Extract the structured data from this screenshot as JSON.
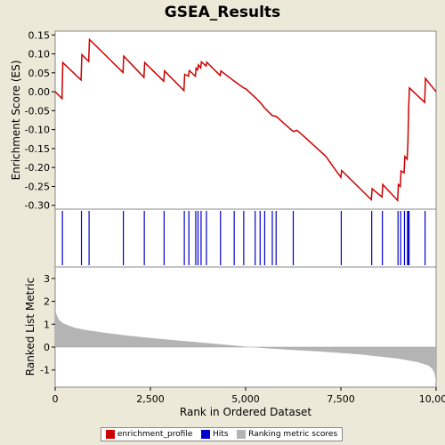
{
  "title": "GSEA_Results",
  "legend": {
    "profile_label": "enrichment_profile",
    "hits_label": "Hits",
    "metric_label": "Ranking metric scores"
  },
  "colors": {
    "profile": "#cc0000",
    "hits": "#0000cc",
    "metric": "#b4b4b4",
    "background": "#ece9d8"
  },
  "chart_data": [
    {
      "type": "line",
      "name": "enrichment_profile",
      "ylabel": "Enrichment Score (ES)",
      "ylim": [
        -0.31,
        0.16
      ],
      "yticks": [
        0.15,
        0.1,
        0.05,
        0.0,
        -0.05,
        -0.1,
        -0.15,
        -0.2,
        -0.25,
        -0.3
      ],
      "ytick_labels": [
        "0.15",
        "0.10",
        "0.05",
        "0.00",
        "-0.05",
        "-0.10",
        "-0.15",
        "-0.20",
        "-0.25",
        "-0.30"
      ],
      "x": [
        0,
        180,
        200,
        680,
        700,
        880,
        900,
        1780,
        1800,
        2330,
        2350,
        2850,
        2870,
        3380,
        3400,
        3500,
        3520,
        3680,
        3700,
        3740,
        3760,
        3820,
        3840,
        3960,
        3980,
        4330,
        4350,
        4700,
        4950,
        5000,
        5250,
        5380,
        5500,
        5700,
        5800,
        6100,
        6250,
        6350,
        6500,
        7100,
        7500,
        7520,
        8300,
        8320,
        8580,
        8600,
        8990,
        9010,
        9060,
        9080,
        9160,
        9180,
        9240,
        9260,
        9280,
        9300,
        9700,
        9720,
        10000
      ],
      "y": [
        0.0,
        -0.018,
        0.077,
        0.031,
        0.098,
        0.08,
        0.138,
        0.051,
        0.094,
        0.038,
        0.077,
        0.028,
        0.055,
        0.003,
        0.046,
        0.041,
        0.056,
        0.041,
        0.062,
        0.058,
        0.071,
        0.063,
        0.079,
        0.068,
        0.078,
        0.043,
        0.055,
        0.028,
        0.01,
        0.008,
        -0.015,
        -0.028,
        -0.043,
        -0.063,
        -0.065,
        -0.092,
        -0.105,
        -0.102,
        -0.115,
        -0.17,
        -0.226,
        -0.208,
        -0.285,
        -0.256,
        -0.278,
        -0.245,
        -0.287,
        -0.245,
        -0.25,
        -0.209,
        -0.214,
        -0.171,
        -0.178,
        -0.134,
        -0.04,
        0.01,
        -0.028,
        0.035,
        0.0
      ]
    },
    {
      "type": "hits",
      "name": "Hits",
      "x": [
        190,
        690,
        890,
        1790,
        2340,
        2860,
        3390,
        3510,
        3690,
        3750,
        3830,
        3970,
        4340,
        4700,
        4950,
        5250,
        5380,
        5500,
        5700,
        5800,
        6250,
        7510,
        8310,
        8590,
        9000,
        9070,
        9170,
        9250,
        9270,
        9290,
        9710
      ]
    },
    {
      "type": "area",
      "name": "Ranking metric scores",
      "xlabel": "Rank in Ordered Dataset",
      "ylabel": "Ranked List Metric",
      "xlim": [
        0,
        10000
      ],
      "ylim": [
        -1.75,
        3.5
      ],
      "xticks": [
        0,
        2500,
        5000,
        7500,
        10000
      ],
      "xtick_labels": [
        "0",
        "2,500",
        "5,000",
        "7,500",
        "10,000"
      ],
      "yticks": [
        3,
        2,
        1,
        0,
        -1
      ],
      "ytick_labels": [
        "3",
        "2",
        "1",
        "0",
        "-1"
      ],
      "x": [
        0,
        40,
        100,
        200,
        350,
        500,
        800,
        1200,
        1800,
        2500,
        3500,
        4500,
        5000,
        5500,
        6000,
        7000,
        8000,
        9000,
        9500,
        9800,
        9900,
        9960,
        10000
      ],
      "y": [
        1.65,
        1.4,
        1.2,
        1.05,
        0.95,
        0.85,
        0.75,
        0.65,
        0.52,
        0.4,
        0.25,
        0.1,
        0.02,
        -0.05,
        -0.1,
        -0.2,
        -0.32,
        -0.5,
        -0.65,
        -0.8,
        -0.95,
        -1.15,
        -1.55
      ]
    }
  ]
}
